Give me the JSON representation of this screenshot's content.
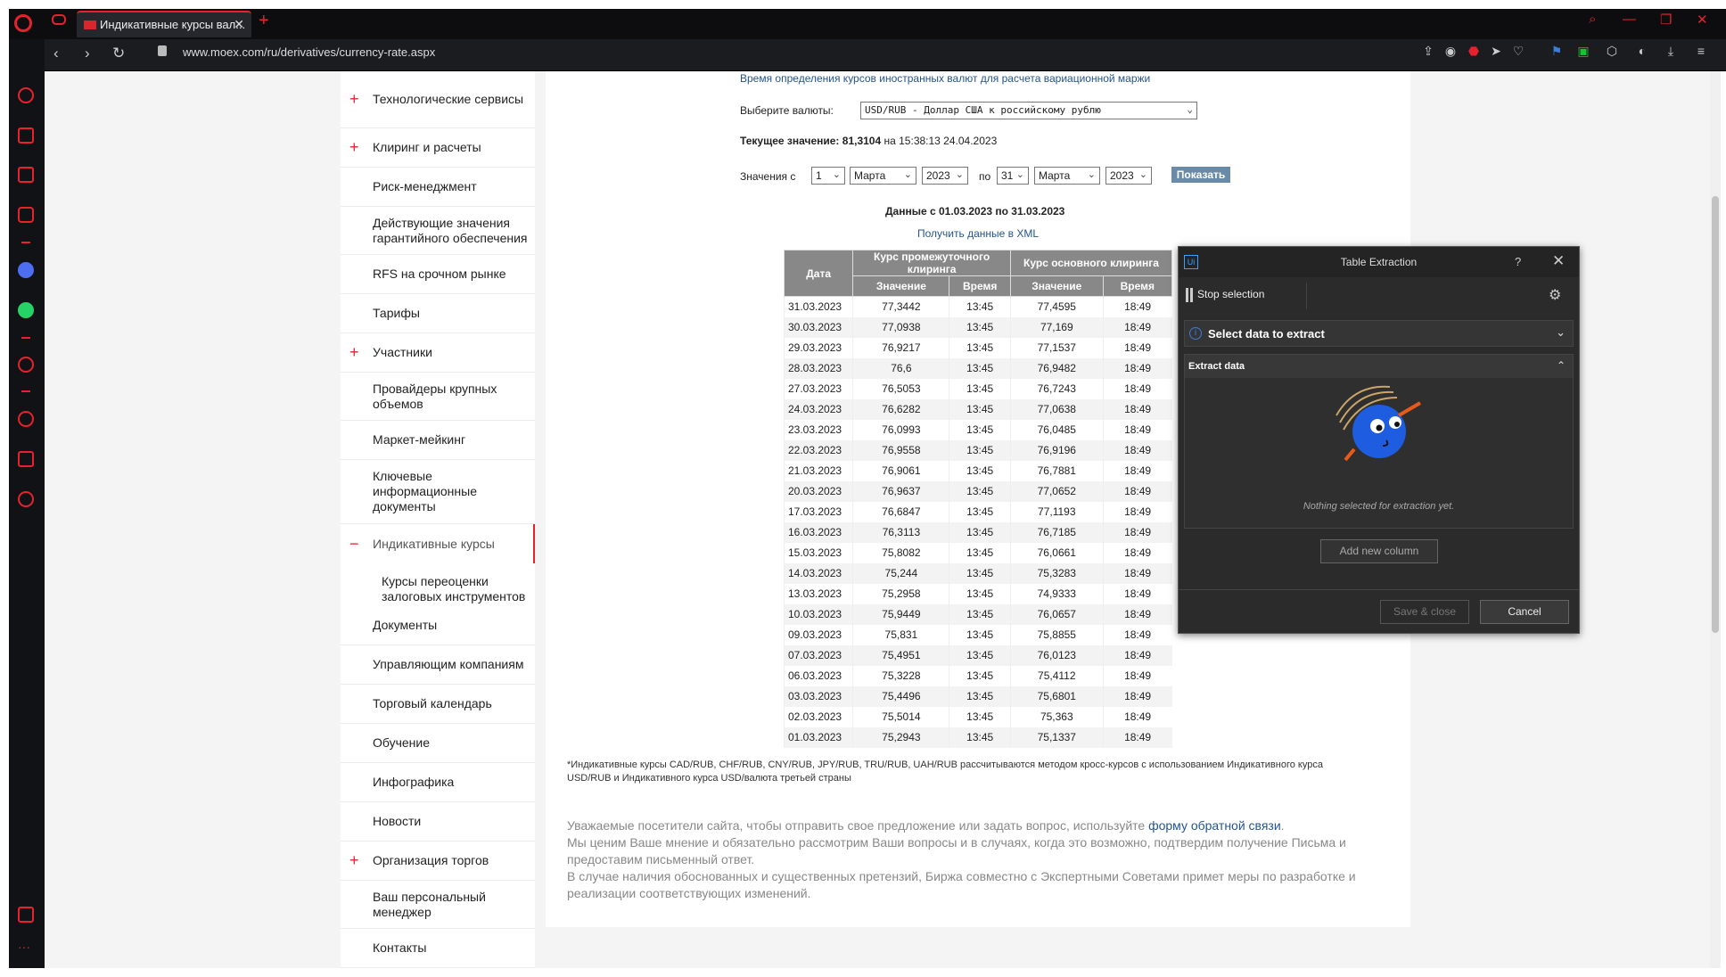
{
  "browser": {
    "tab_title": "Индикативные курсы вал...",
    "url": "www.moex.com/ru/derivatives/currency-rate.aspx"
  },
  "nav": {
    "items": [
      {
        "label": "Технологические сервисы",
        "plus": "+"
      },
      {
        "label": "Клиринг и расчеты",
        "plus": "+"
      },
      {
        "label": "Риск-менеджмент",
        "plus": ""
      },
      {
        "label": "Действующие значения гарантийного обеспечения",
        "plus": ""
      },
      {
        "label": "RFS на срочном рынке",
        "plus": ""
      },
      {
        "label": "Тарифы",
        "plus": ""
      },
      {
        "label": "Участники",
        "plus": "+"
      },
      {
        "label": "Провайдеры крупных объемов",
        "plus": ""
      },
      {
        "label": "Маркет-мейкинг",
        "plus": ""
      },
      {
        "label": "Ключевые информационные документы",
        "plus": ""
      },
      {
        "label": "Индикативные курсы",
        "plus": "−"
      },
      {
        "label": "Документы",
        "plus": ""
      },
      {
        "label": "Управляющим компаниям",
        "plus": ""
      },
      {
        "label": "Торговый календарь",
        "plus": ""
      },
      {
        "label": "Обучение",
        "plus": ""
      },
      {
        "label": "Инфографика",
        "plus": ""
      },
      {
        "label": "Новости",
        "plus": ""
      },
      {
        "label": "Организация торгов",
        "plus": "+"
      },
      {
        "label": "Ваш персональный менеджер",
        "plus": ""
      },
      {
        "label": "Контакты",
        "plus": ""
      }
    ],
    "sub_item": "Курсы переоценки залоговых инструментов"
  },
  "main": {
    "top_link": "Время определения курсов иностранных валют для расчета вариационной маржи",
    "currency_label": "Выберите валюты:",
    "currency_value": "USD/RUB - Доллар США к российскому рублю",
    "current_label": "Текущее значение:",
    "current_value": "81,3104",
    "current_suffix": "на 15:38:13 24.04.2023",
    "from_label": "Значения с",
    "from_day": "1",
    "from_month": "Марта",
    "from_year": "2023",
    "to_label": "по",
    "to_day": "31",
    "to_month": "Марта",
    "to_year": "2023",
    "show_button": "Показать",
    "data_range": "Данные с 01.03.2023 по 31.03.2023",
    "xml_link": "Получить данные в XML",
    "table": {
      "h_date": "Дата",
      "h_interim": "Курс промежуточного клиринга",
      "h_main": "Курс основного клиринга",
      "h_value": "Значение",
      "h_time": "Время",
      "rows": [
        [
          "31.03.2023",
          "77,3442",
          "13:45",
          "77,4595",
          "18:49"
        ],
        [
          "30.03.2023",
          "77,0938",
          "13:45",
          "77,169",
          "18:49"
        ],
        [
          "29.03.2023",
          "76,9217",
          "13:45",
          "77,1537",
          "18:49"
        ],
        [
          "28.03.2023",
          "76,6",
          "13:45",
          "76,9482",
          "18:49"
        ],
        [
          "27.03.2023",
          "76,5053",
          "13:45",
          "76,7243",
          "18:49"
        ],
        [
          "24.03.2023",
          "76,6282",
          "13:45",
          "77,0638",
          "18:49"
        ],
        [
          "23.03.2023",
          "76,0993",
          "13:45",
          "76,0485",
          "18:49"
        ],
        [
          "22.03.2023",
          "76,9558",
          "13:45",
          "76,9196",
          "18:49"
        ],
        [
          "21.03.2023",
          "76,9061",
          "13:45",
          "76,7881",
          "18:49"
        ],
        [
          "20.03.2023",
          "76,9637",
          "13:45",
          "77,0652",
          "18:49"
        ],
        [
          "17.03.2023",
          "76,6847",
          "13:45",
          "77,1193",
          "18:49"
        ],
        [
          "16.03.2023",
          "76,3113",
          "13:45",
          "76,7185",
          "18:49"
        ],
        [
          "15.03.2023",
          "75,8082",
          "13:45",
          "76,0661",
          "18:49"
        ],
        [
          "14.03.2023",
          "75,244",
          "13:45",
          "75,3283",
          "18:49"
        ],
        [
          "13.03.2023",
          "75,2958",
          "13:45",
          "74,9333",
          "18:49"
        ],
        [
          "10.03.2023",
          "75,9449",
          "13:45",
          "76,0657",
          "18:49"
        ],
        [
          "09.03.2023",
          "75,831",
          "13:45",
          "75,8855",
          "18:49"
        ],
        [
          "07.03.2023",
          "75,4951",
          "13:45",
          "76,0123",
          "18:49"
        ],
        [
          "06.03.2023",
          "75,3228",
          "13:45",
          "75,4112",
          "18:49"
        ],
        [
          "03.03.2023",
          "75,4496",
          "13:45",
          "75,6801",
          "18:49"
        ],
        [
          "02.03.2023",
          "75,5014",
          "13:45",
          "75,363",
          "18:49"
        ],
        [
          "01.03.2023",
          "75,2943",
          "13:45",
          "75,1337",
          "18:49"
        ]
      ]
    },
    "footnote": "*Индикативные курсы CAD/RUB, CHF/RUB, CNY/RUB, JPY/RUB, TRU/RUB, UAH/RUB рассчитываются методом кросс-курсов с использованием Индикативного курса USD/RUB и Индикативного курса USD/валюта третьей страны",
    "feedback_pre": "Уважаемые посетители сайта, чтобы отправить свое предложение или задать вопрос, используйте",
    "feedback_link": "форму обратной связи",
    "feedback_post": ".",
    "feedback_2": "Мы ценим Ваше мнение и обязательно рассмотрим Ваши вопросы и в случаях, когда это возможно, подтвердим получение Письма и предоставим письменный ответ.",
    "feedback_3": "В случае наличия обоснованных и существенных претензий, Биржа совместно с Экспертными Советами примет меры по разработке и реализации соответствующих изменений."
  },
  "panel": {
    "logo": "Ui",
    "title": "Table Extraction",
    "help": "?",
    "close": "✕",
    "stop": "Stop selection",
    "select_section": "Select data to extract",
    "extract_section": "Extract data",
    "empty_text": "Nothing selected for extraction yet.",
    "add_column": "Add new column",
    "save_close": "Save & close",
    "cancel": "Cancel"
  }
}
